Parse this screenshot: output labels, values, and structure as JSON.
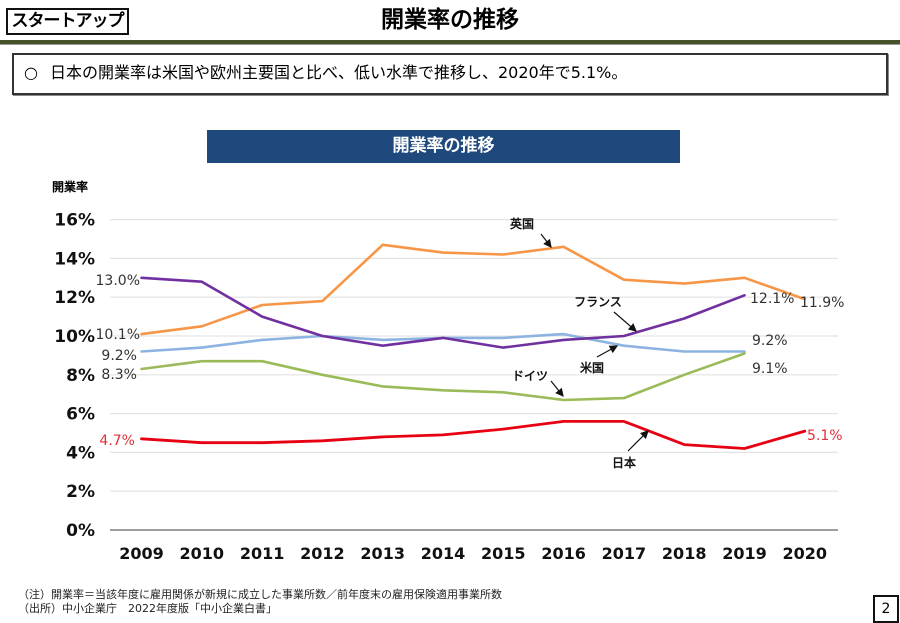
{
  "header": {
    "tag": "スタートアップ",
    "title": "開業率の推移"
  },
  "summary": {
    "bullet": "○",
    "text": "日本の開業率は米国や欧州主要国と比べ、低い水準で推移し、2020年で5.1%。"
  },
  "chart_data": {
    "type": "line",
    "title": "開業率の推移",
    "ylabel": "開業率",
    "xlabel": "",
    "categories": [
      "2009",
      "2010",
      "2011",
      "2012",
      "2013",
      "2014",
      "2015",
      "2016",
      "2017",
      "2018",
      "2019",
      "2020"
    ],
    "ylim": [
      0,
      16
    ],
    "yticks": [
      {
        "value": 0,
        "label": "0%"
      },
      {
        "value": 2,
        "label": "2%"
      },
      {
        "value": 4,
        "label": "4%"
      },
      {
        "value": 6,
        "label": "6%"
      },
      {
        "value": 8,
        "label": "8%"
      },
      {
        "value": 10,
        "label": "10%"
      },
      {
        "value": 12,
        "label": "12%"
      },
      {
        "value": 14,
        "label": "14%"
      },
      {
        "value": 16,
        "label": "16%"
      }
    ],
    "grid": true,
    "legend": "inline annotations",
    "series": [
      {
        "name": "日本",
        "color": "#e60012",
        "label_color": "#e0303a",
        "values": [
          4.7,
          4.5,
          4.5,
          4.6,
          4.8,
          4.9,
          5.2,
          5.6,
          5.6,
          4.4,
          4.2,
          5.1
        ],
        "start_label": "4.7%",
        "end_label": "5.1%"
      },
      {
        "name": "米国",
        "color": "#8db3e2",
        "label_color": "#333333",
        "values": [
          9.2,
          9.4,
          9.8,
          10.0,
          9.8,
          9.9,
          9.9,
          10.1,
          9.5,
          9.2,
          9.2,
          null
        ],
        "start_label": "9.2%",
        "end_label": "9.2%"
      },
      {
        "name": "英国",
        "color": "#f79646",
        "label_color": "#333333",
        "values": [
          10.1,
          10.5,
          11.6,
          11.8,
          14.7,
          14.3,
          14.2,
          14.6,
          12.9,
          12.7,
          13.0,
          11.9
        ],
        "start_label": "10.1%",
        "end_label": "11.9%"
      },
      {
        "name": "ドイツ",
        "color": "#9bbb59",
        "label_color": "#333333",
        "values": [
          8.3,
          8.7,
          8.7,
          8.0,
          7.4,
          7.2,
          7.1,
          6.7,
          6.8,
          8.0,
          9.1,
          null
        ],
        "start_label": "8.3%",
        "end_label": "9.1%"
      },
      {
        "name": "フランス",
        "color": "#7030a0",
        "label_color": "#333333",
        "values": [
          13.0,
          12.8,
          11.0,
          10.0,
          9.5,
          9.9,
          9.4,
          9.8,
          10.0,
          10.9,
          12.1,
          null
        ],
        "start_label": "13.0%",
        "end_label": "12.1%"
      }
    ],
    "annotations": [
      {
        "text": "英国",
        "series": "英国"
      },
      {
        "text": "フランス",
        "series": "フランス"
      },
      {
        "text": "米国",
        "series": "米国"
      },
      {
        "text": "ドイツ",
        "series": "ドイツ"
      },
      {
        "text": "日本",
        "series": "日本"
      }
    ]
  },
  "footer": {
    "note": "（注）開業率＝当該年度に雇用関係が新規に成立した事業所数／前年度末の雇用保険適用事業所数",
    "source": "（出所）中小企業庁　2022年度版「中小企業白書」"
  },
  "page_number": "2"
}
